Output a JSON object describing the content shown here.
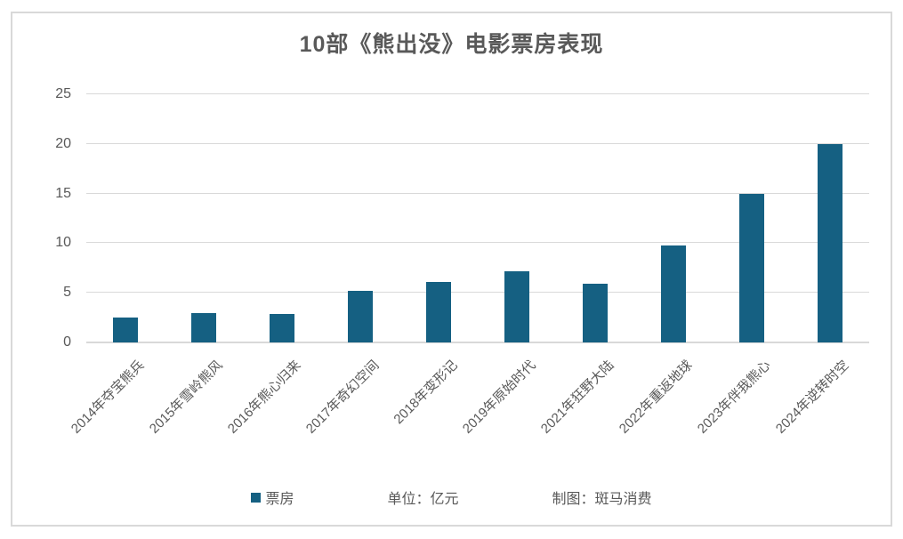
{
  "title": "10部《熊出没》电影票房表现",
  "legend": {
    "series_label": "票房",
    "unit_label": "单位：亿元",
    "credit_label": "制图：斑马消费"
  },
  "colors": {
    "bar": "#156082",
    "gridline": "#d9d9d9",
    "axis_text": "#595959",
    "title_text": "#595959",
    "card_border": "#d9d9d9",
    "background": "#ffffff"
  },
  "chart_data": {
    "type": "bar",
    "title": "10部《熊出没》电影票房表现",
    "series_name": "票房",
    "unit": "亿元",
    "categories": [
      "2014年夺宝熊兵",
      "2015年雪岭熊风",
      "2016年熊心归来",
      "2017年奇幻空间",
      "2018年变形记",
      "2019年原始时代",
      "2021年狂野大陆",
      "2022年重返地球",
      "2023年伴我熊心",
      "2024年逆转时空"
    ],
    "values": [
      2.47,
      2.95,
      2.88,
      5.23,
      6.05,
      7.17,
      5.95,
      9.77,
      14.95,
      20
    ],
    "xlabel": "",
    "ylabel": "",
    "ylim": [
      0,
      25
    ],
    "yticks": [
      0,
      5,
      10,
      15,
      20,
      25
    ],
    "grid": true,
    "legend_position": "bottom"
  }
}
